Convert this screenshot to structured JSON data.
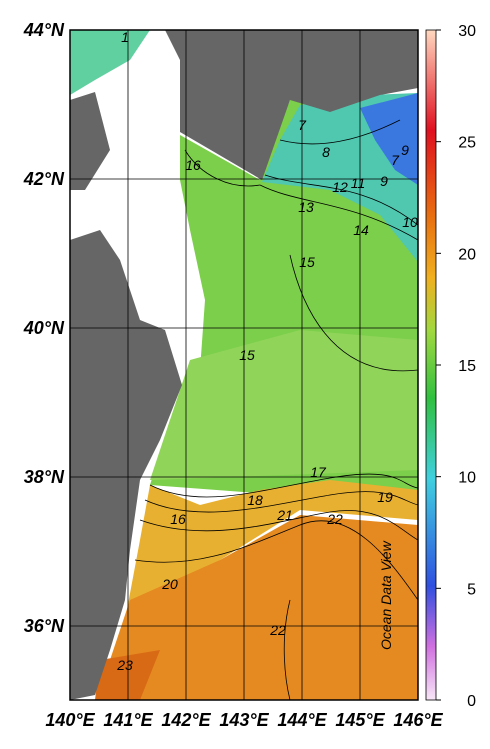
{
  "map": {
    "lat_labels": [
      "44°N",
      "42°N",
      "40°N",
      "38°N",
      "36°N"
    ],
    "lon_labels": [
      "140°E",
      "141°E",
      "142°E",
      "143°E",
      "144°E",
      "145°E",
      "146°E"
    ],
    "contour_labels": [
      1,
      7,
      8,
      9,
      7,
      11,
      12,
      9,
      13,
      14,
      10,
      16,
      15,
      15,
      17,
      18,
      19,
      16,
      21,
      22,
      20,
      22,
      23
    ],
    "credit": "Ocean Data View"
  },
  "colorbar": {
    "range": [
      0,
      30
    ],
    "ticks": [
      0,
      5,
      10,
      15,
      20,
      25,
      30
    ]
  }
}
